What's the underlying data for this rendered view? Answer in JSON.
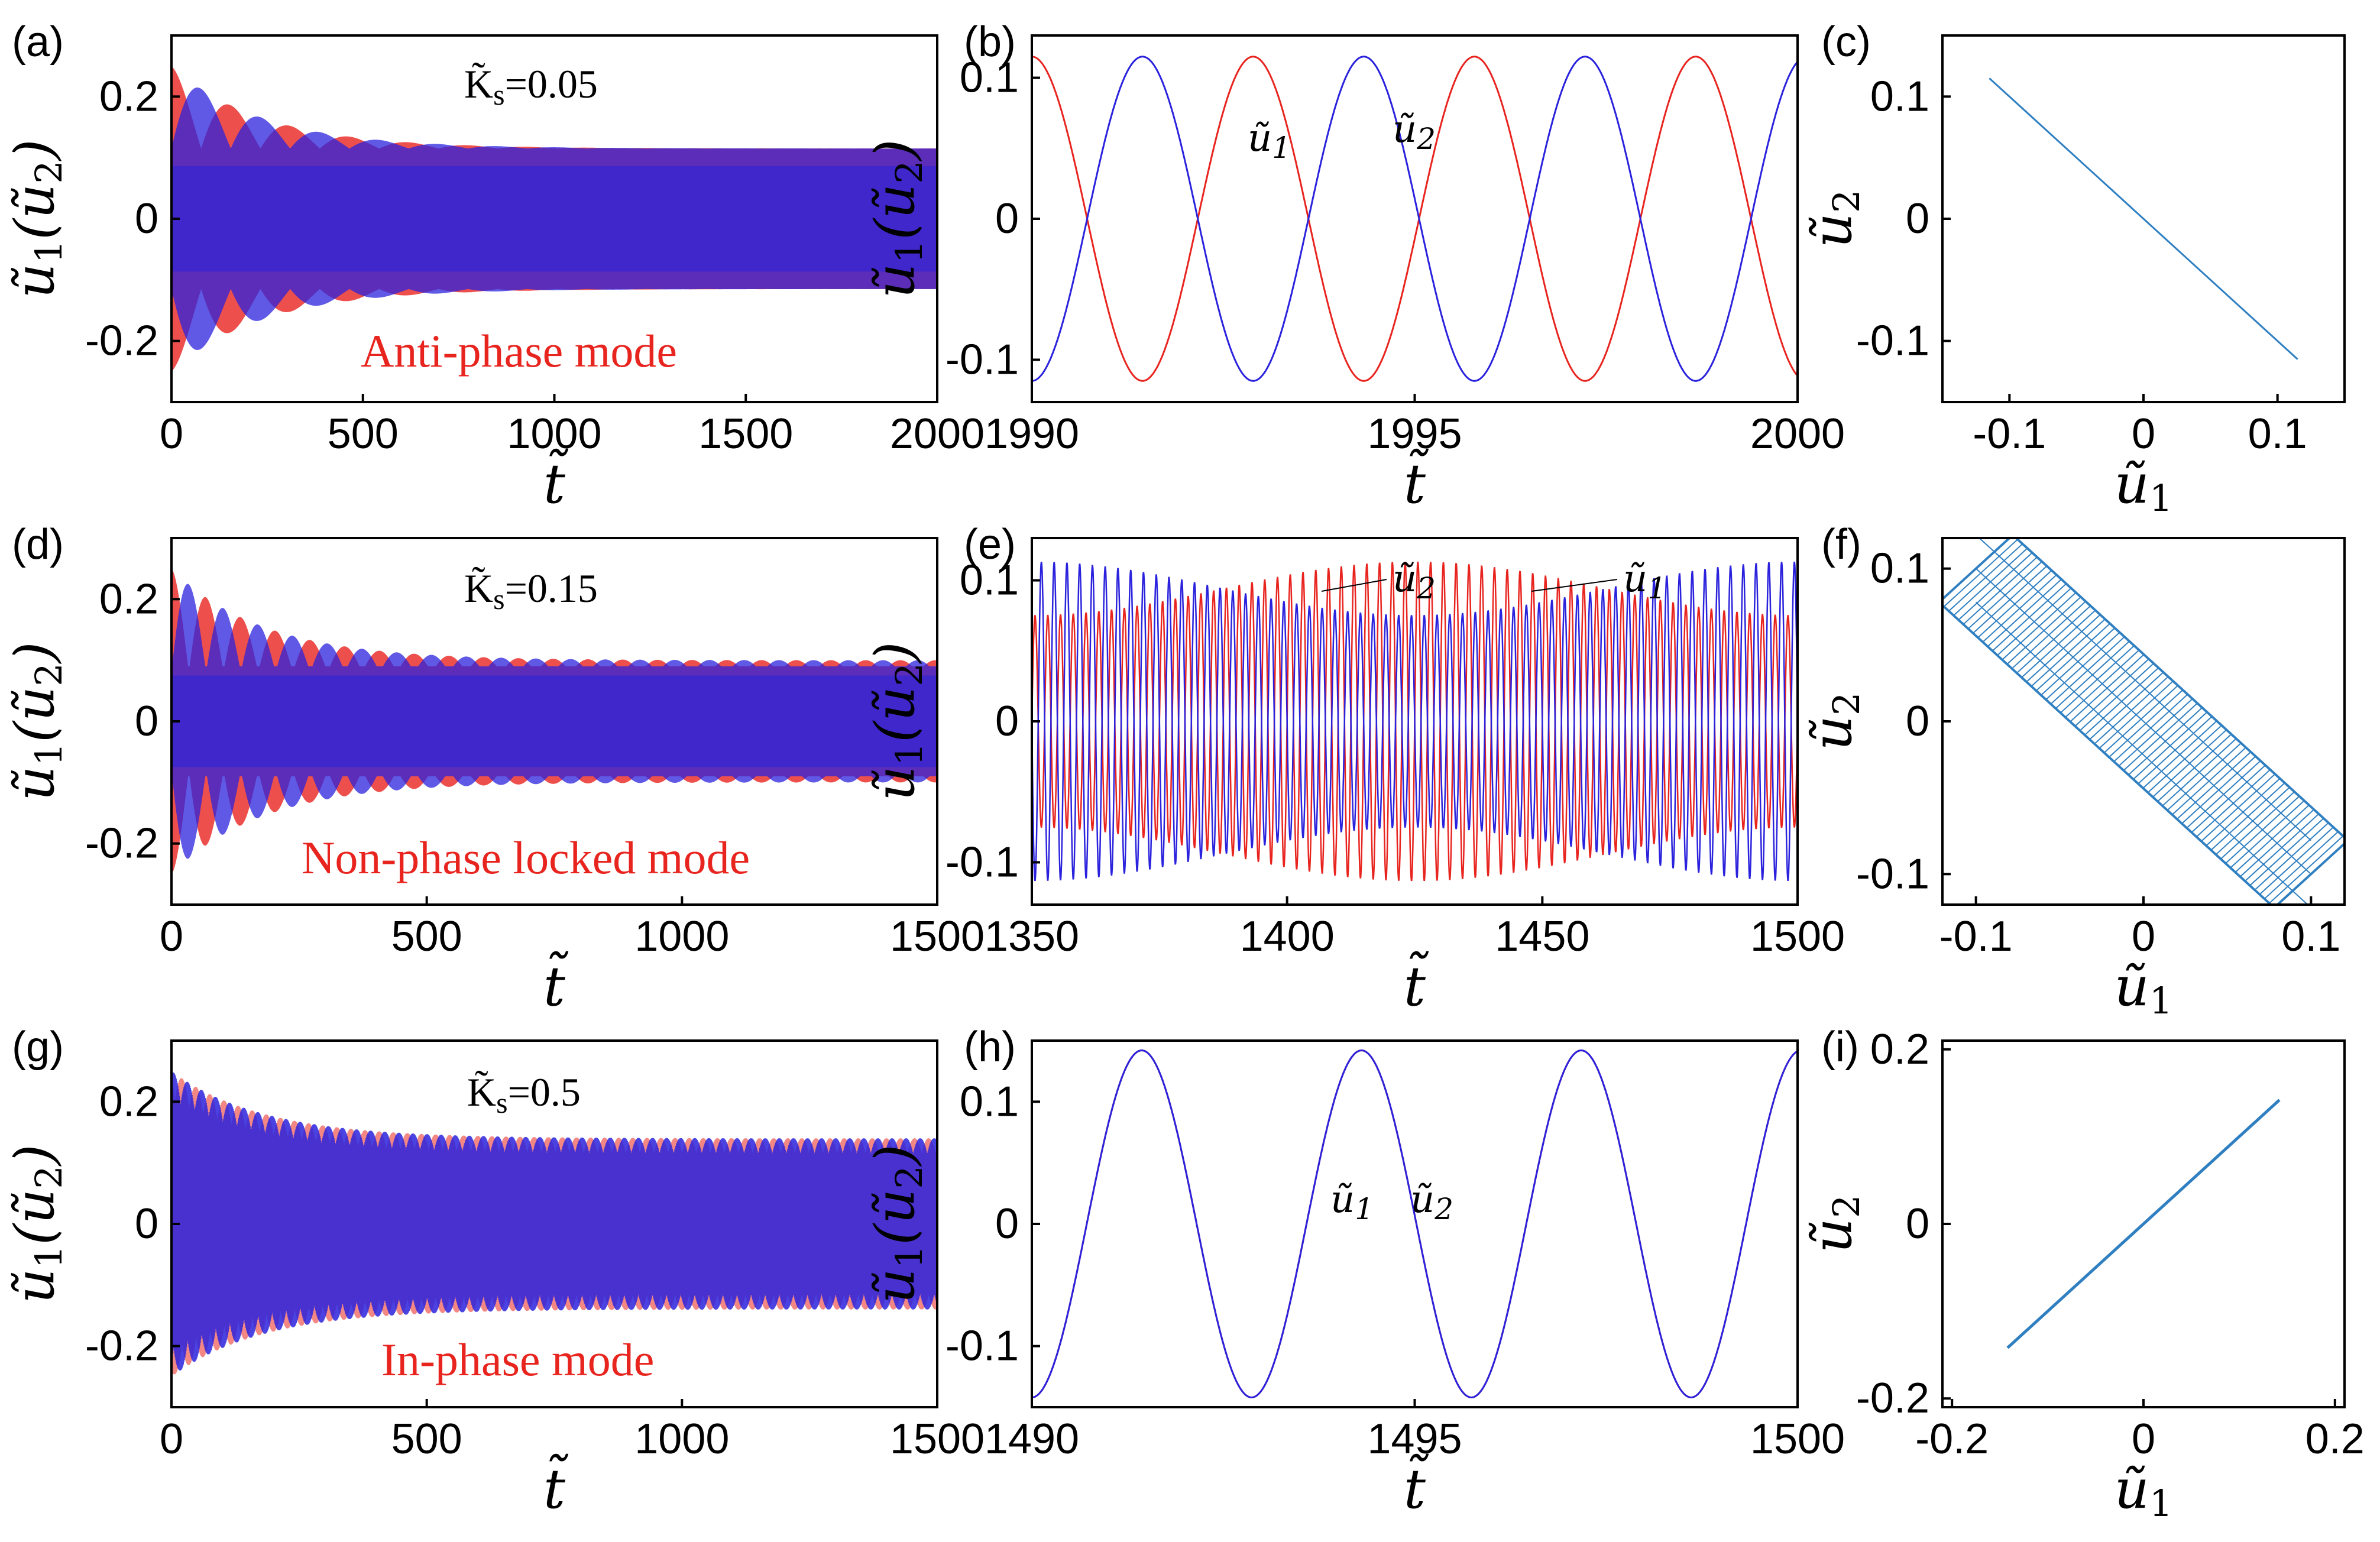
{
  "colors": {
    "u1": "#e8241f",
    "u2": "#2a22dc",
    "phase": "#2f7fc1",
    "mode_text": "#e8241f"
  },
  "symbols": {
    "u": "ũ",
    "t": "t̃",
    "K": "K̃"
  },
  "chart_data": [
    {
      "id": "a",
      "label": "(a)",
      "type": "line",
      "title": "",
      "ks_label": "K̃s=0.05",
      "mode_text": "Anti-phase mode",
      "xlabel": "t̃",
      "ylabel": "ũ1(ũ2)",
      "xlim": [
        0,
        2000
      ],
      "ylim": [
        -0.3,
        0.3
      ],
      "xticks": [
        0,
        500,
        1000,
        1500,
        2000
      ],
      "xtick_labels": [
        "0",
        "500",
        "1000",
        "1500",
        "2000"
      ],
      "yticks": [
        -0.2,
        0,
        0.2
      ],
      "ytick_labels": [
        "-0.2",
        "0",
        "0.2"
      ],
      "series": [
        {
          "name": "ũ1",
          "color": "#e8241f",
          "initial_amplitude": 0.25,
          "steady_amplitude": 0.115
        },
        {
          "name": "ũ2",
          "color": "#2a22dc",
          "initial_amplitude": 0.25,
          "steady_amplitude": 0.115
        }
      ]
    },
    {
      "id": "b",
      "label": "(b)",
      "type": "line",
      "xlabel": "t̃",
      "ylabel": "ũ1(ũ2)",
      "xlim": [
        1990,
        2000
      ],
      "ylim": [
        -0.13,
        0.13
      ],
      "xticks": [
        1990,
        1995,
        2000
      ],
      "xtick_labels": [
        "1990",
        "1995",
        "2000"
      ],
      "yticks": [
        -0.1,
        0,
        0.1
      ],
      "ytick_labels": [
        "-0.1",
        "0",
        "0.1"
      ],
      "amplitude": 0.115,
      "period": 2.89,
      "series": [
        {
          "name": "ũ1",
          "color": "#e8241f",
          "phase_deg": 0
        },
        {
          "name": "ũ2",
          "color": "#2a22dc",
          "phase_deg": 180
        }
      ],
      "annotations": [
        "ũ1",
        "ũ2"
      ]
    },
    {
      "id": "c",
      "label": "(c)",
      "type": "scatter",
      "xlabel": "ũ1",
      "ylabel": "ũ2",
      "xlim": [
        -0.15,
        0.15
      ],
      "ylim": [
        -0.15,
        0.15
      ],
      "xticks": [
        -0.1,
        0,
        0.1
      ],
      "xtick_labels": [
        "-0.1",
        "0",
        "0.1"
      ],
      "yticks": [
        -0.1,
        0,
        0.1
      ],
      "ytick_labels": [
        "-0.1",
        "0",
        "0.1"
      ],
      "line_from": [
        -0.115,
        0.115
      ],
      "line_to": [
        0.115,
        -0.115
      ]
    },
    {
      "id": "d",
      "label": "(d)",
      "type": "line",
      "ks_label": "K̃s=0.15",
      "mode_text": "Non-phase locked mode",
      "xlabel": "t̃",
      "ylabel": "ũ1(ũ2)",
      "xlim": [
        0,
        1500
      ],
      "ylim": [
        -0.3,
        0.3
      ],
      "xticks": [
        0,
        500,
        1000,
        1500
      ],
      "xtick_labels": [
        "0",
        "500",
        "1000",
        "1500"
      ],
      "yticks": [
        -0.2,
        0,
        0.2
      ],
      "ytick_labels": [
        "-0.2",
        "0",
        "0.2"
      ],
      "series": [
        {
          "name": "ũ1",
          "color": "#e8241f",
          "initial_amplitude": 0.25,
          "steady_amplitude": 0.1
        },
        {
          "name": "ũ2",
          "color": "#2a22dc",
          "initial_amplitude": 0.25,
          "steady_amplitude": 0.1
        }
      ]
    },
    {
      "id": "e",
      "label": "(e)",
      "type": "line",
      "xlabel": "t̃",
      "ylabel": "ũ1(ũ2)",
      "xlim": [
        1350,
        1500
      ],
      "ylim": [
        -0.13,
        0.13
      ],
      "xticks": [
        1350,
        1400,
        1450,
        1500
      ],
      "xtick_labels": [
        "1350",
        "1400",
        "1450",
        "1500"
      ],
      "yticks": [
        -0.1,
        0,
        0.1
      ],
      "ytick_labels": [
        "-0.1",
        "0",
        "0.1"
      ],
      "amplitude_range": [
        0.075,
        0.113
      ],
      "period": 2.5,
      "series": [
        {
          "name": "ũ1",
          "color": "#e8241f"
        },
        {
          "name": "ũ2",
          "color": "#2a22dc"
        }
      ],
      "annotations": [
        "ũ2",
        "ũ1"
      ]
    },
    {
      "id": "f",
      "label": "(f)",
      "type": "scatter",
      "xlabel": "ũ1",
      "ylabel": "ũ2",
      "xlim": [
        -0.12,
        0.12
      ],
      "ylim": [
        -0.12,
        0.12
      ],
      "xticks": [
        -0.1,
        0,
        0.1
      ],
      "xtick_labels": [
        "-0.1",
        "0",
        "0.1"
      ],
      "yticks": [
        -0.1,
        0,
        0.1
      ],
      "ytick_labels": [
        "-0.1",
        "0",
        "0.1"
      ],
      "band_half_width": 0.022,
      "band_extent": 0.1
    },
    {
      "id": "g",
      "label": "(g)",
      "type": "line",
      "ks_label": "K̃s=0.5",
      "mode_text": "In-phase mode",
      "xlabel": "t̃",
      "ylabel": "ũ1(ũ2)",
      "xlim": [
        0,
        1500
      ],
      "ylim": [
        -0.3,
        0.3
      ],
      "xticks": [
        0,
        500,
        1000,
        1500
      ],
      "xtick_labels": [
        "0",
        "500",
        "1000",
        "1500"
      ],
      "yticks": [
        -0.2,
        0,
        0.2
      ],
      "ytick_labels": [
        "-0.2",
        "0",
        "0.2"
      ],
      "series": [
        {
          "name": "ũ1",
          "color": "#e8241f",
          "initial_amplitude": 0.25,
          "steady_amplitude": 0.14
        },
        {
          "name": "ũ2",
          "color": "#2a22dc",
          "initial_amplitude": 0.25,
          "steady_amplitude": 0.14
        }
      ]
    },
    {
      "id": "h",
      "label": "(h)",
      "type": "line",
      "xlabel": "t̃",
      "ylabel": "ũ1(ũ2)",
      "xlim": [
        1490,
        1500
      ],
      "ylim": [
        -0.15,
        0.15
      ],
      "xticks": [
        1490,
        1495,
        1500
      ],
      "xtick_labels": [
        "1490",
        "1495",
        "1500"
      ],
      "yticks": [
        -0.1,
        0,
        0.1
      ],
      "ytick_labels": [
        "-0.1",
        "0",
        "0.1"
      ],
      "amplitude": 0.142,
      "period": 2.87,
      "series": [
        {
          "name": "ũ1",
          "color": "#e8241f",
          "phase_deg": 0
        },
        {
          "name": "ũ2",
          "color": "#2a22dc",
          "phase_deg": 0
        }
      ],
      "annotations": [
        "ũ1",
        "ũ2"
      ]
    },
    {
      "id": "i",
      "label": "(i)",
      "type": "scatter",
      "xlabel": "ũ1",
      "ylabel": "ũ2",
      "xlim": [
        -0.21,
        0.21
      ],
      "ylim": [
        -0.21,
        0.21
      ],
      "xticks": [
        -0.2,
        0,
        0.2
      ],
      "xtick_labels": [
        "-0.2",
        "0",
        "0.2"
      ],
      "yticks": [
        -0.2,
        0,
        0.2
      ],
      "ytick_labels": [
        "-0.2",
        "0",
        "0.2"
      ],
      "line_from": [
        -0.142,
        -0.142
      ],
      "line_to": [
        0.142,
        0.142
      ]
    }
  ]
}
